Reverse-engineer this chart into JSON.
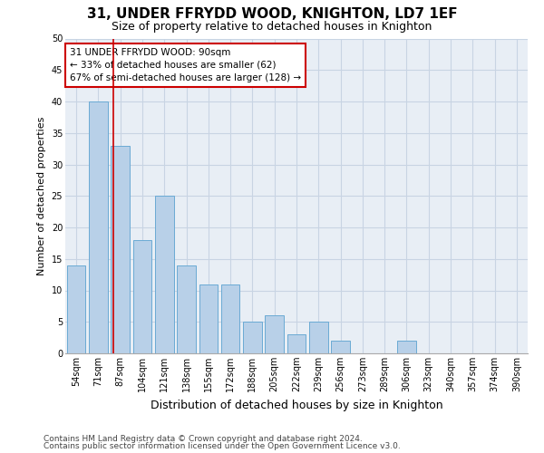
{
  "title1": "31, UNDER FFRYDD WOOD, KNIGHTON, LD7 1EF",
  "title2": "Size of property relative to detached houses in Knighton",
  "xlabel": "Distribution of detached houses by size in Knighton",
  "ylabel": "Number of detached properties",
  "bar_labels": [
    "54sqm",
    "71sqm",
    "87sqm",
    "104sqm",
    "121sqm",
    "138sqm",
    "155sqm",
    "172sqm",
    "188sqm",
    "205sqm",
    "222sqm",
    "239sqm",
    "256sqm",
    "273sqm",
    "289sqm",
    "306sqm",
    "323sqm",
    "340sqm",
    "357sqm",
    "374sqm",
    "390sqm"
  ],
  "bar_values": [
    14,
    40,
    33,
    18,
    25,
    14,
    11,
    11,
    5,
    6,
    3,
    5,
    2,
    0,
    0,
    2,
    0,
    0,
    0,
    0,
    0
  ],
  "bar_color": "#b8d0e8",
  "bar_edge_color": "#6aaad4",
  "grid_color": "#c8d4e3",
  "background_color": "#e8eef5",
  "vline_color": "#cc0000",
  "annotation_text": "31 UNDER FFRYDD WOOD: 90sqm\n← 33% of detached houses are smaller (62)\n67% of semi-detached houses are larger (128) →",
  "annotation_box_color": "#ffffff",
  "annotation_box_edge": "#cc0000",
  "ylim": [
    0,
    50
  ],
  "yticks": [
    0,
    5,
    10,
    15,
    20,
    25,
    30,
    35,
    40,
    45,
    50
  ],
  "footer1": "Contains HM Land Registry data © Crown copyright and database right 2024.",
  "footer2": "Contains public sector information licensed under the Open Government Licence v3.0.",
  "title1_fontsize": 11,
  "title2_fontsize": 9,
  "ylabel_fontsize": 8,
  "xlabel_fontsize": 9,
  "tick_fontsize": 7,
  "annotation_fontsize": 7.5,
  "footer_fontsize": 6.5,
  "vline_pos": 1.676
}
